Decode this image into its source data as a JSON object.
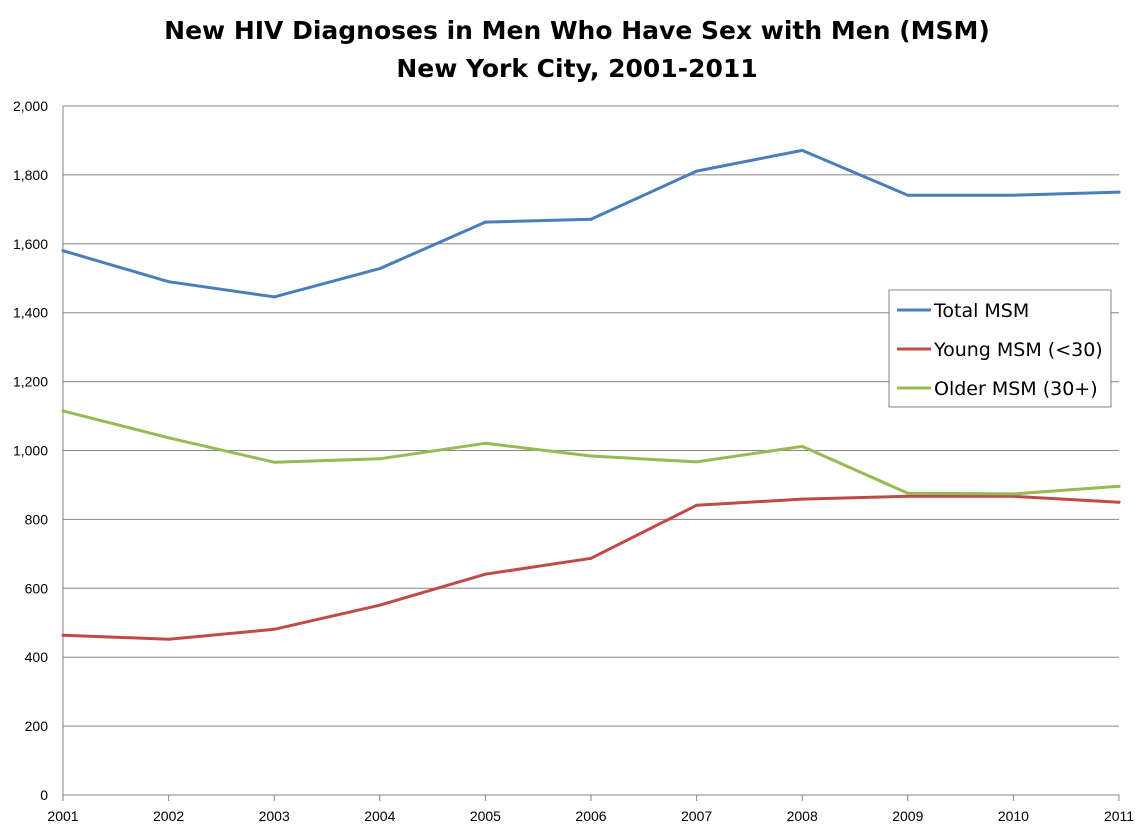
{
  "chart_data": {
    "type": "line",
    "title": [
      "New HIV Diagnoses in Men Who Have Sex with Men (MSM)",
      "New York City, 2001-2011"
    ],
    "x": [
      "2001",
      "2002",
      "2003",
      "2004",
      "2005",
      "2006",
      "2007",
      "2008",
      "2009",
      "2010",
      "2011"
    ],
    "y_ticks": [
      "0",
      "200",
      "400",
      "600",
      "800",
      "1,000",
      "1,200",
      "1,400",
      "1,600",
      "1,800",
      "2,000"
    ],
    "ylim": [
      0,
      2000
    ],
    "ytick_step": 200,
    "grid": true,
    "legend_position": "right",
    "series": [
      {
        "name": "Total MSM",
        "color": "#4A7EBB",
        "values": [
          1580,
          1490,
          1446,
          1528,
          1663,
          1671,
          1811,
          1871,
          1741,
          1741,
          1750
        ]
      },
      {
        "name": "Young MSM (<30)",
        "color": "#BE4B48",
        "values": [
          464,
          452,
          481,
          551,
          641,
          687,
          841,
          859,
          867,
          867,
          850
        ]
      },
      {
        "name": "Older MSM (30+)",
        "color": "#98B954",
        "values": [
          1115,
          1037,
          966,
          976,
          1021,
          984,
          967,
          1012,
          876,
          874,
          896
        ]
      }
    ]
  }
}
